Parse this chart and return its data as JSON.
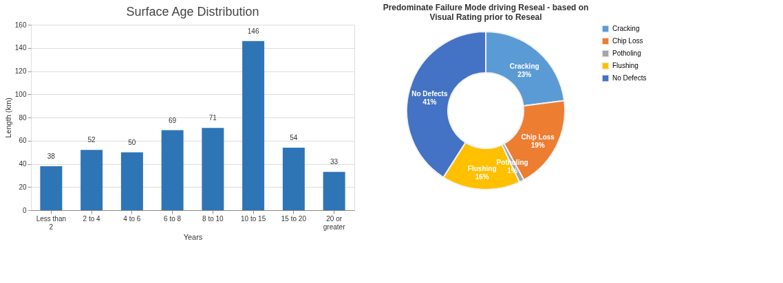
{
  "chart_data": [
    {
      "type": "bar",
      "title": "Surface Age Distribution",
      "xlabel": "Years",
      "ylabel": "Length (km)",
      "categories": [
        "Less than 2",
        "2 to 4",
        "4 to 6",
        "6 to 8",
        "8 to 10",
        "10 to 15",
        "15 to 20",
        "20 or greater"
      ],
      "values": [
        38,
        52,
        50,
        69,
        71,
        146,
        54,
        33
      ],
      "color": "#2e75b6",
      "ylim": [
        0,
        160
      ],
      "yticks": [
        0,
        20,
        40,
        60,
        80,
        100,
        120,
        140,
        160
      ],
      "grid": "y",
      "data_labels": true
    },
    {
      "type": "donut",
      "title": "Predominate Failure Mode driving Reseal - based on Visual Rating prior to Reseal",
      "categories": [
        "Cracking",
        "Chip Loss",
        "Potholing",
        "Flushing",
        "No Defects"
      ],
      "values": [
        23,
        19,
        1,
        16,
        41
      ],
      "value_labels": [
        "23%",
        "19%",
        "1%",
        "16%",
        "41%"
      ],
      "colors": [
        "#5b9bd5",
        "#ed7d31",
        "#a5a5a5",
        "#ffc000",
        "#4472c4"
      ],
      "legend": "right"
    }
  ]
}
